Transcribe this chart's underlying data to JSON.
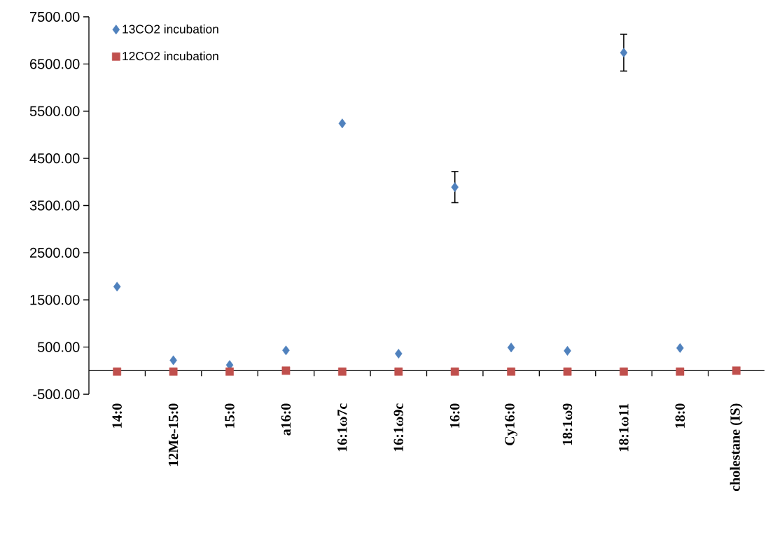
{
  "chart_data": {
    "type": "scatter",
    "categories": [
      "14:0",
      "12Me-15:0",
      "15:0",
      "a16:0",
      "16:1ω7c",
      "16:1ω9c",
      "16:0",
      "Cy16:0",
      "18:1ω9",
      "18:1ω11",
      "18:0",
      "cholestane (IS)"
    ],
    "series": [
      {
        "name": "13CO2 incubation",
        "color": "#4f81bd",
        "marker": "diamond",
        "values": [
          1780,
          220,
          120,
          430,
          5240,
          360,
          3890,
          490,
          420,
          6740,
          480,
          null
        ],
        "errors": [
          null,
          null,
          null,
          null,
          null,
          null,
          330,
          null,
          null,
          390,
          null,
          null
        ]
      },
      {
        "name": "12CO2 incubation",
        "color": "#c0504d",
        "marker": "square",
        "values": [
          -20,
          -20,
          -20,
          0,
          -20,
          -20,
          -20,
          -20,
          -20,
          -20,
          -20,
          0
        ]
      }
    ],
    "ylim": [
      -500,
      7500
    ],
    "yticks": [
      {
        "value": -500,
        "label": "-500.00"
      },
      {
        "value": 500,
        "label": "500.00"
      },
      {
        "value": 1500,
        "label": "1500.00"
      },
      {
        "value": 2500,
        "label": "2500.00"
      },
      {
        "value": 3500,
        "label": "3500.00"
      },
      {
        "value": 4500,
        "label": "4500.00"
      },
      {
        "value": 5500,
        "label": "5500.00"
      },
      {
        "value": 6500,
        "label": "6500.00"
      },
      {
        "value": 7500,
        "label": "7500.00"
      }
    ],
    "legend": "top left",
    "grid": false
  }
}
